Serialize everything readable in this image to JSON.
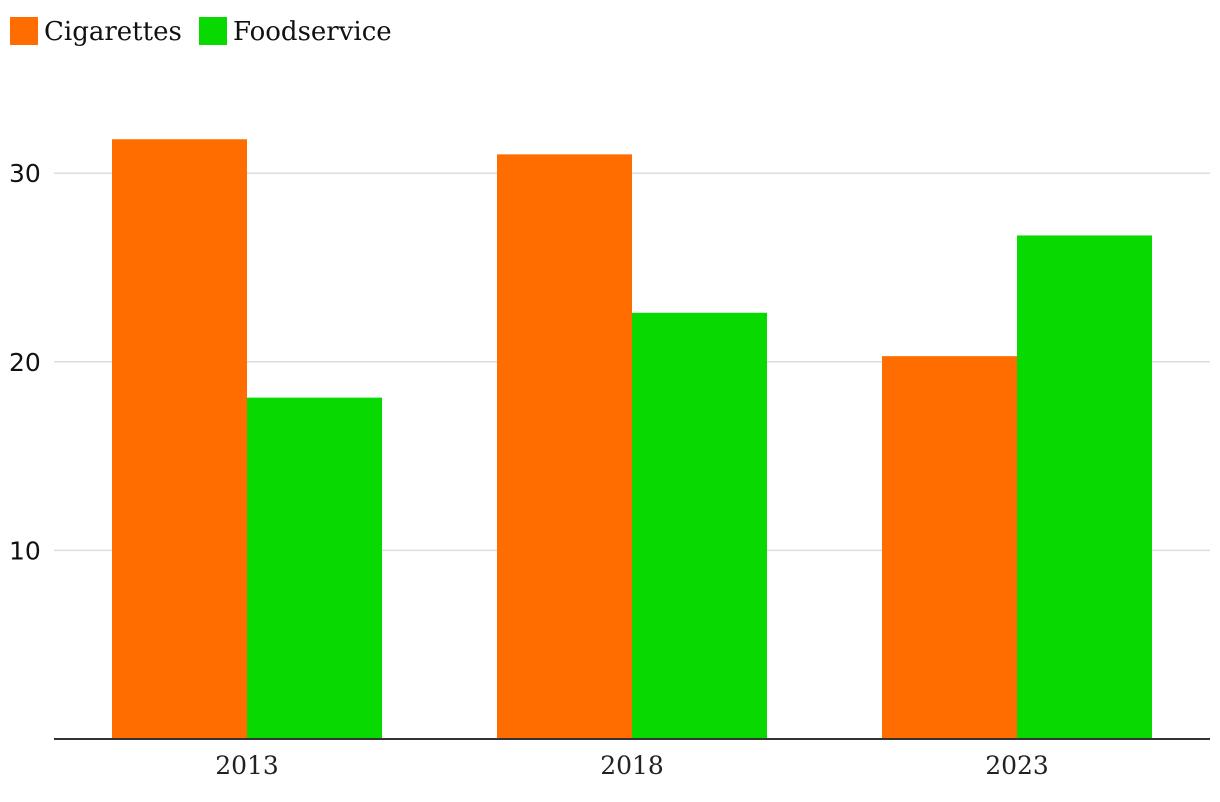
{
  "chart_data": {
    "type": "bar",
    "categories": [
      "2013",
      "2018",
      "2023"
    ],
    "series": [
      {
        "name": "Cigarettes",
        "color": "#ff6d00",
        "values": [
          31.8,
          31.0,
          20.3
        ]
      },
      {
        "name": "Foodservice",
        "color": "#08d900",
        "values": [
          18.1,
          22.6,
          26.7
        ]
      }
    ],
    "yticks": [
      10,
      20,
      30
    ],
    "ylim": [
      0,
      34.2
    ],
    "grid": true,
    "legend": "top-left"
  }
}
